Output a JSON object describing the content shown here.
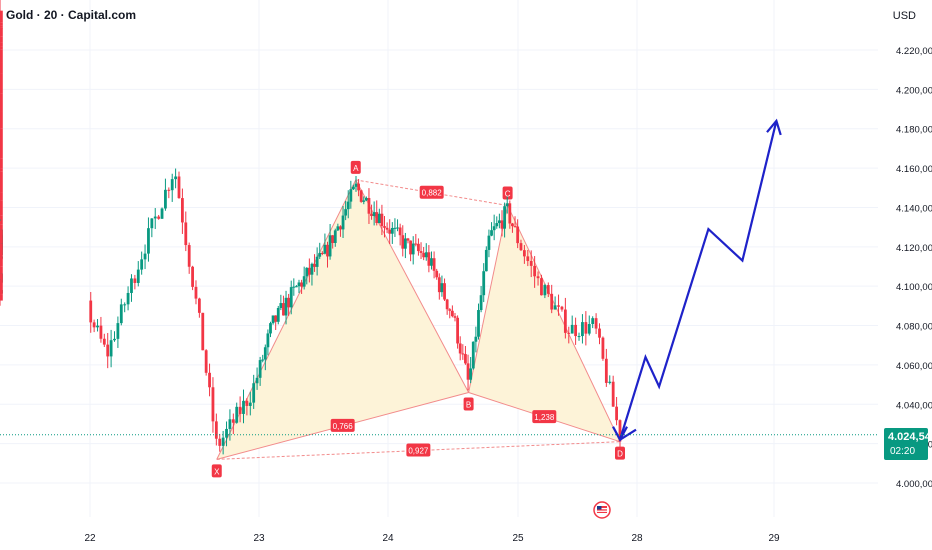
{
  "header": {
    "symbol_title": "Gold · 20 · Capital.com",
    "currency": "USD"
  },
  "last_price": {
    "value": "4.024,54",
    "countdown": "02:20",
    "color": "#089981"
  },
  "colors": {
    "up": "#089981",
    "down": "#f23645",
    "harmonic_fill": "#fdf3d8",
    "harmonic_line": "#f28b8b",
    "projection": "#1e22c9",
    "grid": "#f0f3fa"
  },
  "chart_data": {
    "type": "candlestick",
    "title": "Gold · 20 · Capital.com",
    "currency": "USD",
    "x_ticks": [
      "22",
      "23",
      "24",
      "25",
      "28",
      "29"
    ],
    "y_ticks": [
      "4.000,00",
      "4.020,00",
      "4.040,00",
      "4.060,00",
      "4.080,00",
      "4.100,00",
      "4.120,00",
      "4.140,00",
      "4.160,00",
      "4.180,00",
      "4.200,00",
      "4.220,00"
    ],
    "ylim": [
      3995,
      4245
    ],
    "grid": true,
    "harmonic_pattern": {
      "points": [
        {
          "label": "X",
          "day": 22.75,
          "price": 4012
        },
        {
          "label": "A",
          "day": 23.75,
          "price": 4154
        },
        {
          "label": "B",
          "day": 24.62,
          "price": 4046
        },
        {
          "label": "C",
          "day": 24.92,
          "price": 4141
        },
        {
          "label": "D",
          "day": 25.6,
          "price": 4021
        }
      ],
      "ratios": [
        {
          "label": "0,882",
          "from": "A",
          "to": "C"
        },
        {
          "label": "0,766",
          "from": "X",
          "to": "B"
        },
        {
          "label": "1,238",
          "from": "B",
          "to": "D"
        },
        {
          "label": "0,927",
          "from": "X",
          "to": "D"
        }
      ]
    },
    "projection": [
      {
        "day": 25.6,
        "price": 4022
      },
      {
        "day": 25.75,
        "price": 4064
      },
      {
        "day": 25.83,
        "price": 4049
      },
      {
        "day": 26.12,
        "price": 4129
      },
      {
        "day": 26.32,
        "price": 4113
      },
      {
        "day": 26.52,
        "price": 4184
      }
    ],
    "last_price": 4024.54
  }
}
